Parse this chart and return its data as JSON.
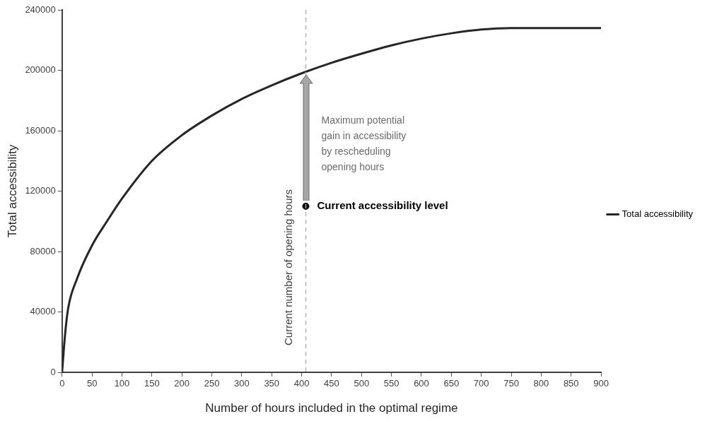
{
  "chart_data": {
    "type": "line",
    "xlabel": "Number of hours included in the optimal regime",
    "ylabel": "Total accessibility",
    "x": [
      0,
      5,
      10,
      25,
      50,
      75,
      100,
      150,
      200,
      250,
      300,
      350,
      400,
      450,
      500,
      550,
      600,
      650,
      700,
      750,
      800,
      850,
      900
    ],
    "series": [
      {
        "name": "Total accessibility",
        "color": "#262626",
        "values": [
          0,
          25000,
          42000,
          62000,
          84000,
          100000,
          115000,
          140000,
          157000,
          170000,
          181000,
          190000,
          198000,
          205000,
          211000,
          216500,
          221000,
          224500,
          227000,
          228000,
          228000,
          228000,
          228000
        ]
      },
      {
        "type": "scatter",
        "name": "Current accessibility level",
        "color": "#000000",
        "x": [
          407
        ],
        "values": [
          110000
        ],
        "marker": "circle"
      }
    ],
    "xlim": [
      0,
      900
    ],
    "xticks": [
      0,
      50,
      100,
      150,
      200,
      250,
      300,
      350,
      400,
      450,
      500,
      550,
      600,
      650,
      700,
      750,
      800,
      850,
      900
    ],
    "ylim": [
      0,
      240000
    ],
    "yticks": [
      0,
      40000,
      80000,
      120000,
      160000,
      200000,
      240000
    ],
    "grid": false,
    "legend": "right",
    "marker": "none",
    "line_style": "solid",
    "ref_lines": [
      {
        "axis": "x",
        "value": 407,
        "label": "Current number of opening hours",
        "color": "#b3b3b3",
        "line_style": "dashed"
      }
    ],
    "annotations": [
      "Maximum potential\ngain in accessibility\nby rescheduling\nopening hours"
    ]
  }
}
